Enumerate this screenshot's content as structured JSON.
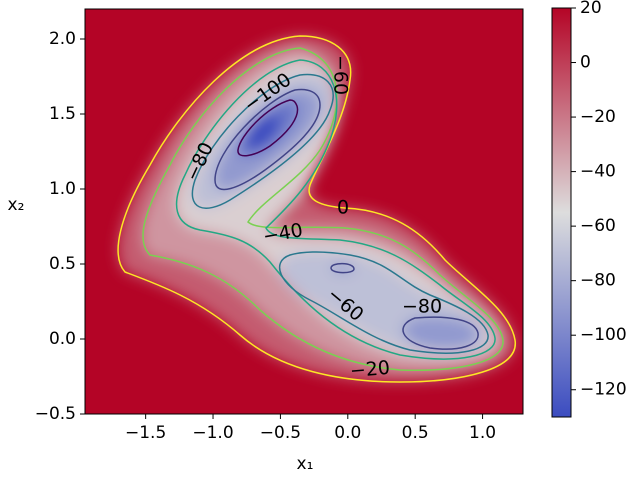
{
  "chart_data": {
    "type": "contour",
    "xlabel": "x₁",
    "ylabel": "x₂",
    "xlim": [
      -1.95,
      1.3
    ],
    "ylim": [
      -0.5,
      2.2
    ],
    "xticks": [
      {
        "value": -1.5,
        "label": "−1.5"
      },
      {
        "value": -1.0,
        "label": "−1.0"
      },
      {
        "value": -0.5,
        "label": "−0.5"
      },
      {
        "value": 0,
        "label": "0.0"
      },
      {
        "value": 0.5,
        "label": "0.5"
      },
      {
        "value": 1.0,
        "label": "1.0"
      }
    ],
    "yticks": [
      {
        "value": -0.5,
        "label": "−0.5"
      },
      {
        "value": 0,
        "label": "0.0"
      },
      {
        "value": 0.5,
        "label": "0.5"
      },
      {
        "value": 1.0,
        "label": "1.0"
      },
      {
        "value": 1.5,
        "label": "1.5"
      },
      {
        "value": 2.0,
        "label": "2.0"
      }
    ],
    "colorbar": {
      "clim": [
        -130,
        20
      ],
      "colormap": [
        "#3b4cc0",
        "#dddddd",
        "#b40426"
      ],
      "ticks": [
        20,
        0,
        {
          "value": -20,
          "label": "−20"
        },
        {
          "value": -40,
          "label": "−40"
        },
        {
          "value": -60,
          "label": "−60"
        },
        {
          "value": -80,
          "label": "−80"
        },
        {
          "value": -100,
          "label": "−100"
        },
        {
          "value": -120,
          "label": "−120"
        }
      ]
    },
    "contours": [
      {
        "level": 0,
        "color": "#fde725"
      },
      {
        "level": -20,
        "color": "#7ad151"
      },
      {
        "level": -40,
        "color": "#22a884"
      },
      {
        "level": -60,
        "color": "#2a788e"
      },
      {
        "level": -80,
        "color": "#414487"
      },
      {
        "level": -100,
        "color": "#440154"
      }
    ],
    "contour_labels": [
      {
        "value": -100,
        "label": "−100"
      },
      {
        "value": -60,
        "label": "−60"
      },
      {
        "value": -80,
        "label": "−80"
      },
      {
        "value": 0,
        "label": "0"
      },
      {
        "value": -40,
        "label": "−40"
      },
      {
        "value": -60,
        "label": "−60"
      },
      {
        "value": -80,
        "label": "−80"
      },
      {
        "value": -20,
        "label": "−20"
      }
    ]
  }
}
